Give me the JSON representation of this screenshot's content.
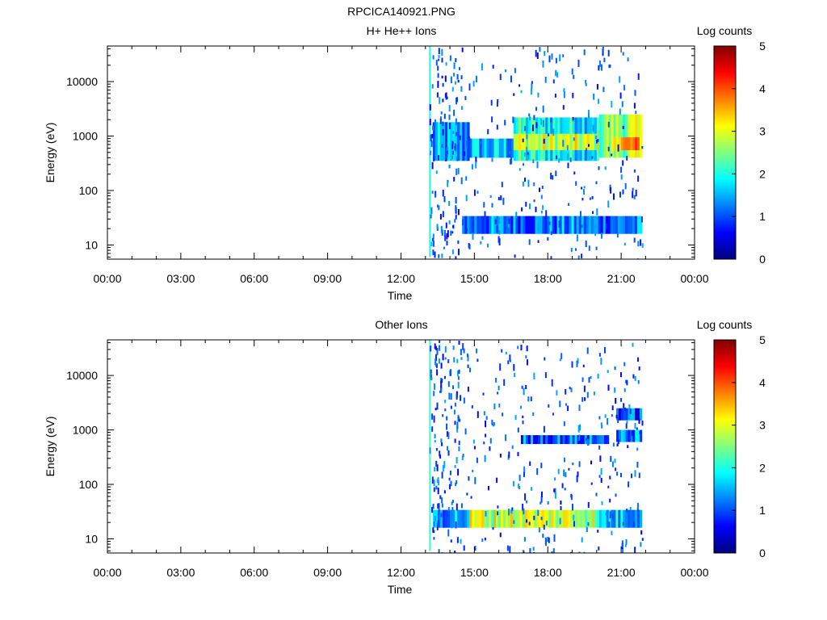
{
  "figure_title": "RPCICA140921.PNG",
  "colorscale": {
    "stops": [
      "#000080",
      "#0000ff",
      "#0080ff",
      "#00ffff",
      "#80ff80",
      "#ffff00",
      "#ff8000",
      "#ff0000",
      "#800000"
    ]
  },
  "chart_data": [
    {
      "type": "heatmap",
      "title": "H+ He++ Ions",
      "xlabel": "Time",
      "ylabel": "Energy (eV)",
      "xlim_hours": [
        0,
        24
      ],
      "x_tick_labels": [
        "00:00",
        "03:00",
        "06:00",
        "09:00",
        "12:00",
        "15:00",
        "18:00",
        "21:00",
        "00:00"
      ],
      "y_scale": "log",
      "ylim": [
        5.5,
        45000
      ],
      "y_tick_labels": [
        "10",
        "100",
        "1000",
        "10000"
      ],
      "colorbar": {
        "label": "Log counts",
        "range": [
          0,
          5
        ],
        "tick_labels": [
          "0",
          "1",
          "2",
          "3",
          "4",
          "5"
        ]
      },
      "data_start_hour": 13.15,
      "data_end_hour": 21.85,
      "bands": [
        {
          "t": [
            13.15,
            13.2
          ],
          "e": [
            6,
            45000
          ],
          "level": 1.8
        },
        {
          "t": [
            13.3,
            14.8
          ],
          "e": [
            350,
            1800
          ],
          "level": 1.3
        },
        {
          "t": [
            14.8,
            16.6
          ],
          "e": [
            400,
            900
          ],
          "level": 1.5
        },
        {
          "t": [
            16.6,
            20.1
          ],
          "e": [
            350,
            2200
          ],
          "level": 1.9
        },
        {
          "t": [
            16.6,
            20.1
          ],
          "e": [
            550,
            1100
          ],
          "level": 2.8
        },
        {
          "t": [
            20.1,
            21.85
          ],
          "e": [
            400,
            2500
          ],
          "level": 2.6
        },
        {
          "t": [
            20.7,
            21.85
          ],
          "e": [
            550,
            950
          ],
          "level": 3.6
        },
        {
          "t": [
            14.5,
            21.85
          ],
          "e": [
            16,
            34
          ],
          "level": 1.2
        }
      ]
    },
    {
      "type": "heatmap",
      "title": "Other Ions",
      "xlabel": "Time",
      "ylabel": "Energy (eV)",
      "xlim_hours": [
        0,
        24
      ],
      "x_tick_labels": [
        "00:00",
        "03:00",
        "06:00",
        "09:00",
        "12:00",
        "15:00",
        "18:00",
        "21:00",
        "00:00"
      ],
      "y_scale": "log",
      "ylim": [
        5.5,
        45000
      ],
      "y_tick_labels": [
        "10",
        "100",
        "1000",
        "10000"
      ],
      "colorbar": {
        "label": "Log counts",
        "range": [
          0,
          5
        ],
        "tick_labels": [
          "0",
          "1",
          "2",
          "3",
          "4",
          "5"
        ]
      },
      "data_start_hour": 13.15,
      "data_end_hour": 21.85,
      "bands": [
        {
          "t": [
            13.15,
            13.2
          ],
          "e": [
            6,
            45000
          ],
          "level": 1.8
        },
        {
          "t": [
            16.9,
            20.5
          ],
          "e": [
            550,
            800
          ],
          "level": 1.1
        },
        {
          "t": [
            20.8,
            21.85
          ],
          "e": [
            1500,
            2500
          ],
          "level": 1.0
        },
        {
          "t": [
            20.8,
            21.85
          ],
          "e": [
            600,
            1000
          ],
          "level": 1.2
        },
        {
          "t": [
            13.3,
            14.8
          ],
          "e": [
            16,
            34
          ],
          "level": 1.5
        },
        {
          "t": [
            14.8,
            20.0
          ],
          "e": [
            16,
            34
          ],
          "level": 2.9
        },
        {
          "t": [
            20.0,
            21.85
          ],
          "e": [
            16,
            34
          ],
          "level": 1.6
        }
      ]
    }
  ]
}
